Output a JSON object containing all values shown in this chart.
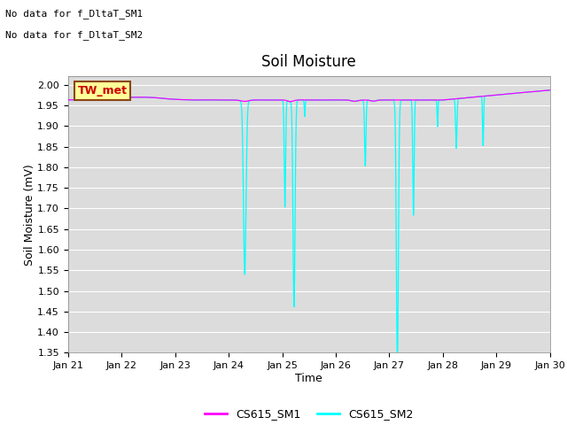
{
  "title": "Soil Moisture",
  "xlabel": "Time",
  "ylabel": "Soil Moisture (mV)",
  "ylim": [
    1.35,
    2.02
  ],
  "yticks": [
    1.35,
    1.4,
    1.45,
    1.5,
    1.55,
    1.6,
    1.65,
    1.7,
    1.75,
    1.8,
    1.85,
    1.9,
    1.95,
    2.0
  ],
  "xtick_labels": [
    "Jan 21",
    "Jan 22",
    "Jan 23",
    "Jan 24",
    "Jan 25",
    "Jan 26",
    "Jan 27",
    "Jan 28",
    "Jan 29",
    "Jan 30"
  ],
  "no_data_text": [
    "No data for f_DltaT_SM1",
    "No data for f_DltaT_SM2"
  ],
  "tw_met_label": "TW_met",
  "legend_labels": [
    "CS615_SM1",
    "CS615_SM2"
  ],
  "sm1_color": "#FF00FF",
  "sm2_color": "#00FFFF",
  "tw_met_bg": "#FFFF99",
  "tw_met_border": "#8B4513",
  "tw_met_text_color": "#CC0000",
  "background_color": "#DCDCDC",
  "grid_color": "#FFFFFF",
  "title_fontsize": 12,
  "axis_fontsize": 9,
  "tick_fontsize": 8,
  "nodata_fontsize": 8,
  "legend_fontsize": 9
}
